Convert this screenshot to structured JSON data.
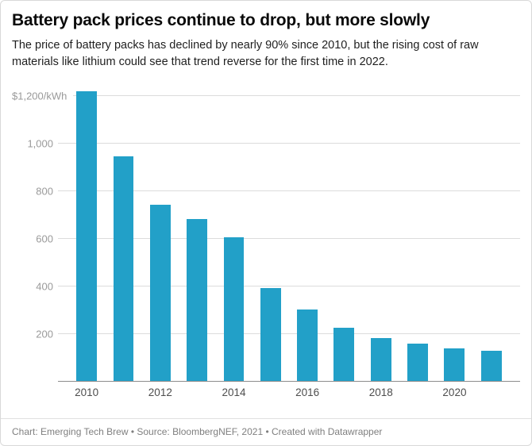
{
  "header": {
    "title": "Battery pack prices continue to drop, but more slowly",
    "subtitle": "The price of battery packs has declined by nearly 90% since 2010, but the rising cost of raw materials like lithium could see that trend reverse for the first time in 2022."
  },
  "footer": {
    "credit": "Chart: Emerging Tech Brew • Source: BloombergNEF, 2021 • Created with Datawrapper"
  },
  "colors": {
    "bar": "#22a0c8",
    "grid": "#dcdcdc",
    "baseline": "#8c8c8c",
    "tick_label": "#9a9a9a",
    "x_label": "#4d4d4d"
  },
  "chart_data": {
    "type": "bar",
    "title": "Battery pack prices continue to drop, but more slowly",
    "unit": "$/kWh",
    "categories": [
      "2010",
      "2011",
      "2012",
      "2013",
      "2014",
      "2015",
      "2016",
      "2017",
      "2018",
      "2019",
      "2020",
      "2021"
    ],
    "values": [
      1220,
      946,
      744,
      684,
      607,
      393,
      303,
      226,
      185,
      161,
      140,
      132
    ],
    "x_ticks": [
      "2010",
      "2012",
      "2014",
      "2016",
      "2018",
      "2020"
    ],
    "y_ticks": [
      {
        "value": 200,
        "label": "200"
      },
      {
        "value": 400,
        "label": "400"
      },
      {
        "value": 600,
        "label": "600"
      },
      {
        "value": 800,
        "label": "800"
      },
      {
        "value": 1000,
        "label": "1,000"
      },
      {
        "value": 1200,
        "label": "$1,200/kWh"
      }
    ],
    "ylim": [
      0,
      1260
    ],
    "grid": "horizontal",
    "legend": "none"
  }
}
